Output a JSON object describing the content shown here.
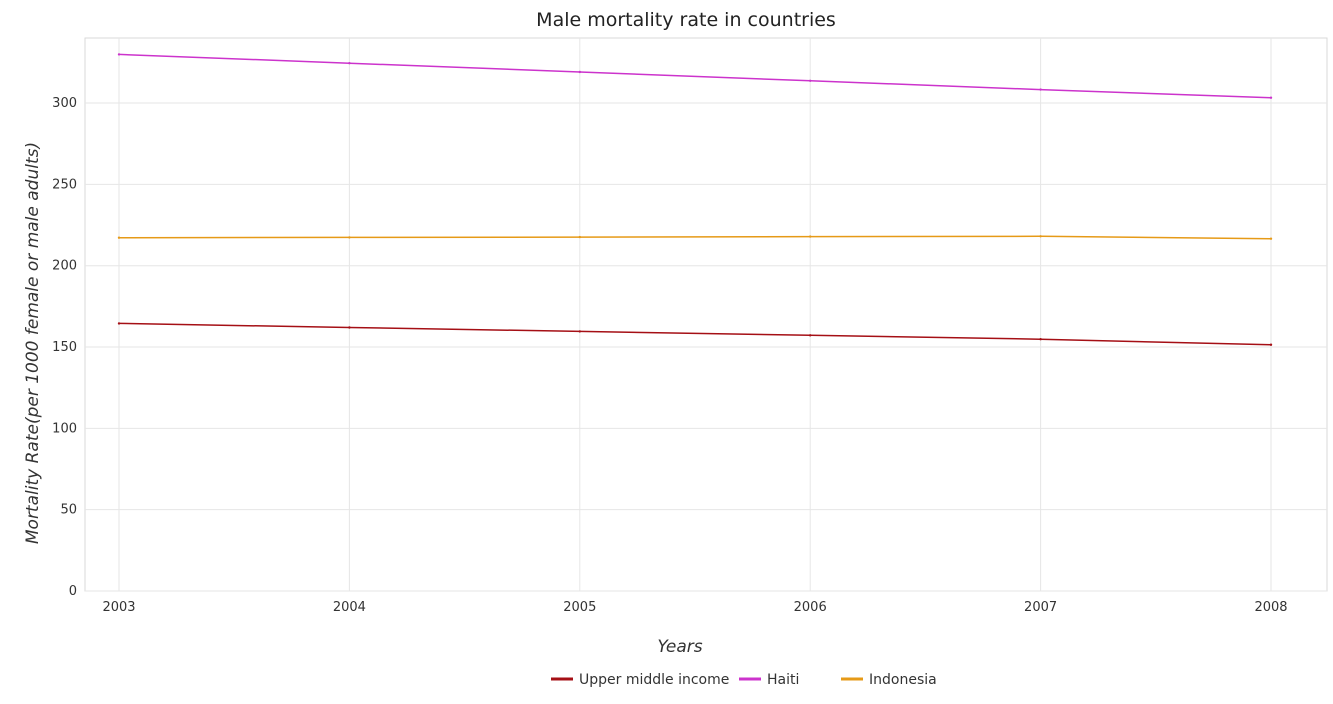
{
  "chart_data": {
    "type": "line",
    "title": "Male mortality rate in countries",
    "xlabel": "Years",
    "ylabel": "Mortality Rate(per 1000 female or male adults)",
    "categories": [
      "2003",
      "2004",
      "2005",
      "2006",
      "2007",
      "2008"
    ],
    "y_ticks": [
      "0",
      "50",
      "100",
      "150",
      "200",
      "250",
      "300"
    ],
    "ylim": [
      0,
      340
    ],
    "grid": true,
    "legend_position": "bottom",
    "series": [
      {
        "name": "Upper middle income",
        "color": "#a50f15",
        "values": [
          164.5,
          162.0,
          159.6,
          157.2,
          154.8,
          151.4
        ]
      },
      {
        "name": "Haiti",
        "color": "#cc33cc",
        "values": [
          329.9,
          324.5,
          319.1,
          313.7,
          308.3,
          303.3
        ]
      },
      {
        "name": "Indonesia",
        "color": "#e69a17",
        "values": [
          217.2,
          217.4,
          217.6,
          217.9,
          218.1,
          216.6
        ]
      }
    ]
  }
}
